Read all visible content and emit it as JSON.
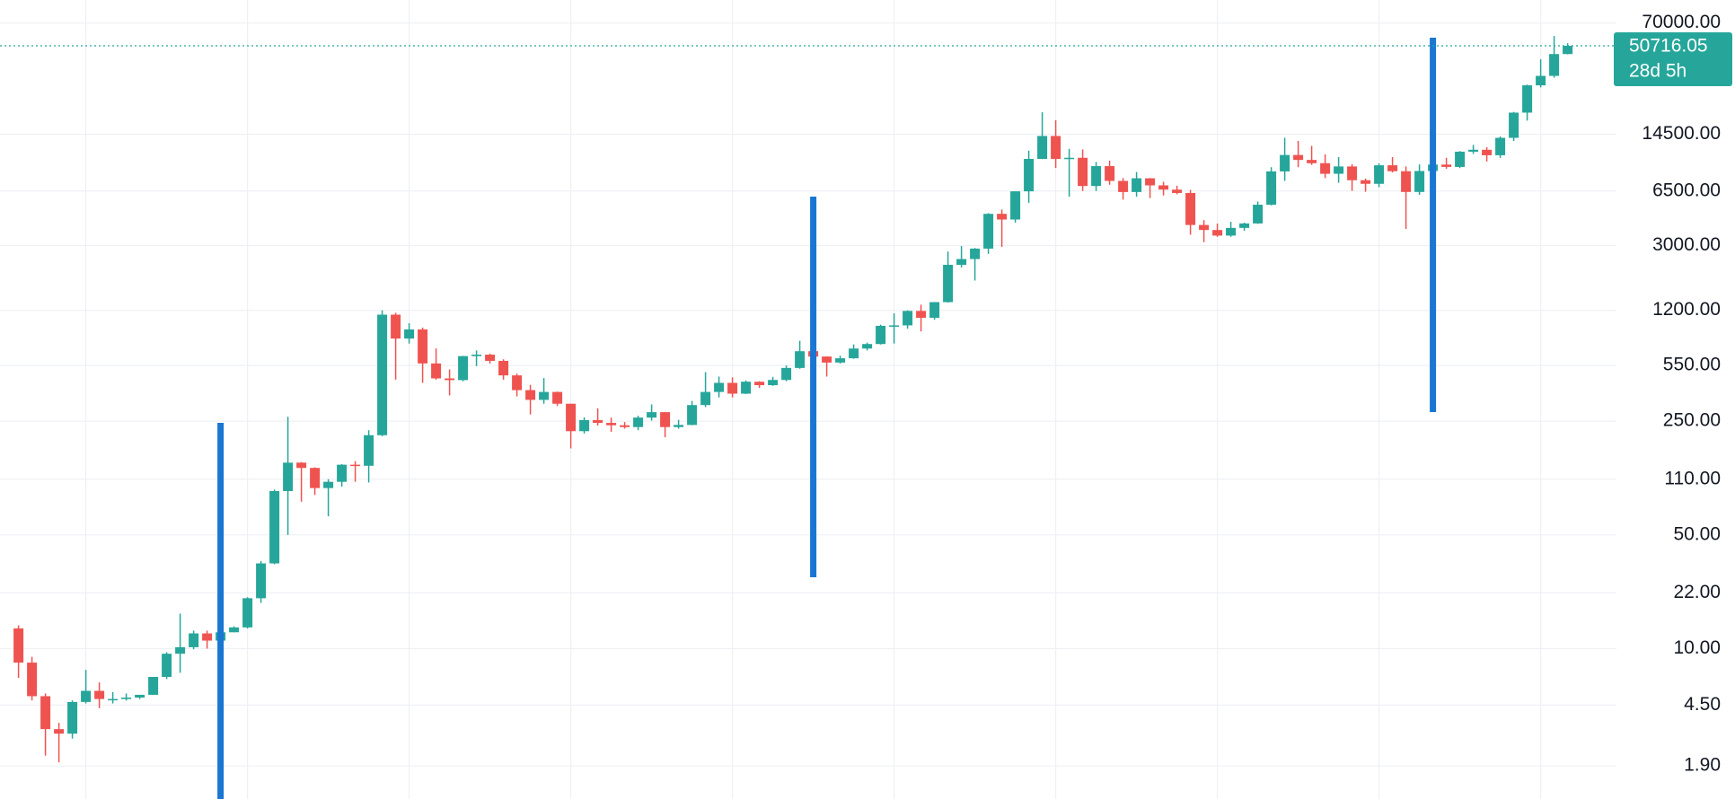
{
  "chart_data": {
    "type": "candlestick",
    "log_scale": true,
    "grid": true,
    "up_color": "#26a69a",
    "down_color": "#ef5350",
    "ylim": [
      1.19,
      97000
    ],
    "yticks": [
      {
        "value": 70000,
        "label": "70000.00"
      },
      {
        "value": 14500,
        "label": "14500.00"
      },
      {
        "value": 6500,
        "label": "6500.00"
      },
      {
        "value": 3000,
        "label": "3000.00"
      },
      {
        "value": 1200,
        "label": "1200.00"
      },
      {
        "value": 550,
        "label": "550.00"
      },
      {
        "value": 250,
        "label": "250.00"
      },
      {
        "value": 110,
        "label": "110.00"
      },
      {
        "value": 50,
        "label": "50.00"
      },
      {
        "value": 22,
        "label": "22.00"
      },
      {
        "value": 10,
        "label": "10.00"
      },
      {
        "value": 4.5,
        "label": "4.50"
      },
      {
        "value": 1.9,
        "label": "1.90"
      }
    ],
    "countdown": "28d 5h",
    "candles": [
      {
        "open": 13.3,
        "high": 13.9,
        "low": 6.6,
        "close": 8.2
      },
      {
        "open": 8.2,
        "high": 8.9,
        "low": 4.8,
        "close": 5.1
      },
      {
        "open": 5.1,
        "high": 5.3,
        "low": 2.2,
        "close": 3.2
      },
      {
        "open": 3.2,
        "high": 3.5,
        "low": 2.0,
        "close": 3.0
      },
      {
        "open": 3.0,
        "high": 4.8,
        "low": 2.8,
        "close": 4.7
      },
      {
        "open": 4.7,
        "high": 7.4,
        "low": 4.6,
        "close": 5.5
      },
      {
        "open": 5.5,
        "high": 6.2,
        "low": 4.3,
        "close": 4.9
      },
      {
        "open": 4.9,
        "high": 5.4,
        "low": 4.6,
        "close": 4.9
      },
      {
        "open": 4.9,
        "high": 5.3,
        "low": 4.8,
        "close": 5.0
      },
      {
        "open": 5.0,
        "high": 5.2,
        "low": 4.9,
        "close": 5.2
      },
      {
        "open": 5.2,
        "high": 6.7,
        "low": 5.2,
        "close": 6.7
      },
      {
        "open": 6.7,
        "high": 9.5,
        "low": 6.5,
        "close": 9.3
      },
      {
        "open": 9.3,
        "high": 16.4,
        "low": 7.1,
        "close": 10.2
      },
      {
        "open": 10.2,
        "high": 12.9,
        "low": 9.9,
        "close": 12.4
      },
      {
        "open": 12.4,
        "high": 12.9,
        "low": 10.0,
        "close": 11.2
      },
      {
        "open": 11.2,
        "high": 12.5,
        "low": 10.5,
        "close": 12.6
      },
      {
        "open": 12.6,
        "high": 13.7,
        "low": 12.6,
        "close": 13.5
      },
      {
        "open": 13.5,
        "high": 20.7,
        "low": 13.3,
        "close": 20.4
      },
      {
        "open": 20.4,
        "high": 34.5,
        "low": 19.1,
        "close": 33.4
      },
      {
        "open": 33.4,
        "high": 95,
        "low": 33,
        "close": 93
      },
      {
        "open": 93,
        "high": 266,
        "low": 50,
        "close": 139
      },
      {
        "open": 139,
        "high": 140,
        "low": 80,
        "close": 129
      },
      {
        "open": 129,
        "high": 130,
        "low": 88,
        "close": 97
      },
      {
        "open": 97,
        "high": 110,
        "low": 65,
        "close": 106
      },
      {
        "open": 106,
        "high": 136,
        "low": 99,
        "close": 135
      },
      {
        "open": 135,
        "high": 142,
        "low": 106,
        "close": 133
      },
      {
        "open": 133,
        "high": 220,
        "low": 105,
        "close": 205
      },
      {
        "open": 205,
        "high": 1200,
        "low": 202,
        "close": 1129
      },
      {
        "open": 1129,
        "high": 1160,
        "low": 450,
        "close": 805
      },
      {
        "open": 805,
        "high": 1000,
        "low": 750,
        "close": 916
      },
      {
        "open": 916,
        "high": 940,
        "low": 430,
        "close": 566
      },
      {
        "open": 566,
        "high": 700,
        "low": 450,
        "close": 458
      },
      {
        "open": 458,
        "high": 520,
        "low": 360,
        "close": 447
      },
      {
        "open": 447,
        "high": 630,
        "low": 440,
        "close": 628
      },
      {
        "open": 628,
        "high": 680,
        "low": 545,
        "close": 641
      },
      {
        "open": 641,
        "high": 650,
        "low": 565,
        "close": 587
      },
      {
        "open": 587,
        "high": 600,
        "low": 450,
        "close": 478
      },
      {
        "open": 478,
        "high": 490,
        "low": 355,
        "close": 388
      },
      {
        "open": 388,
        "high": 418,
        "low": 275,
        "close": 338
      },
      {
        "open": 338,
        "high": 460,
        "low": 320,
        "close": 378
      },
      {
        "open": 378,
        "high": 380,
        "low": 310,
        "close": 320
      },
      {
        "open": 320,
        "high": 320,
        "low": 170,
        "close": 217
      },
      {
        "open": 217,
        "high": 264,
        "low": 210,
        "close": 254
      },
      {
        "open": 254,
        "high": 300,
        "low": 235,
        "close": 244
      },
      {
        "open": 244,
        "high": 263,
        "low": 215,
        "close": 236
      },
      {
        "open": 236,
        "high": 247,
        "low": 225,
        "close": 230
      },
      {
        "open": 230,
        "high": 270,
        "low": 220,
        "close": 263
      },
      {
        "open": 263,
        "high": 317,
        "low": 252,
        "close": 284
      },
      {
        "open": 284,
        "high": 285,
        "low": 199,
        "close": 230
      },
      {
        "open": 230,
        "high": 255,
        "low": 225,
        "close": 237
      },
      {
        "open": 237,
        "high": 333,
        "low": 236,
        "close": 314
      },
      {
        "open": 314,
        "high": 500,
        "low": 305,
        "close": 378
      },
      {
        "open": 378,
        "high": 470,
        "low": 350,
        "close": 430
      },
      {
        "open": 430,
        "high": 465,
        "low": 350,
        "close": 369
      },
      {
        "open": 369,
        "high": 445,
        "low": 367,
        "close": 437
      },
      {
        "open": 437,
        "high": 440,
        "low": 400,
        "close": 416
      },
      {
        "open": 416,
        "high": 468,
        "low": 412,
        "close": 448
      },
      {
        "open": 448,
        "high": 550,
        "low": 440,
        "close": 531
      },
      {
        "open": 531,
        "high": 780,
        "low": 525,
        "close": 673
      },
      {
        "open": 673,
        "high": 680,
        "low": 582,
        "close": 624
      },
      {
        "open": 624,
        "high": 626,
        "low": 470,
        "close": 573
      },
      {
        "open": 573,
        "high": 632,
        "low": 565,
        "close": 609
      },
      {
        "open": 609,
        "high": 740,
        "low": 605,
        "close": 699
      },
      {
        "open": 699,
        "high": 760,
        "low": 680,
        "close": 745
      },
      {
        "open": 745,
        "high": 980,
        "low": 740,
        "close": 964
      },
      {
        "open": 964,
        "high": 1150,
        "low": 750,
        "close": 970
      },
      {
        "open": 970,
        "high": 1200,
        "low": 925,
        "close": 1190
      },
      {
        "open": 1190,
        "high": 1300,
        "low": 890,
        "close": 1080
      },
      {
        "open": 1080,
        "high": 1350,
        "low": 1050,
        "close": 1348
      },
      {
        "open": 1348,
        "high": 2760,
        "low": 1340,
        "close": 2286
      },
      {
        "open": 2286,
        "high": 2980,
        "low": 2200,
        "close": 2480
      },
      {
        "open": 2480,
        "high": 2900,
        "low": 1830,
        "close": 2875
      },
      {
        "open": 2875,
        "high": 4750,
        "low": 2670,
        "close": 4703
      },
      {
        "open": 4703,
        "high": 5000,
        "low": 2950,
        "close": 4339
      },
      {
        "open": 4339,
        "high": 6470,
        "low": 4150,
        "close": 6468
      },
      {
        "open": 6468,
        "high": 11500,
        "low": 5500,
        "close": 10233
      },
      {
        "open": 10233,
        "high": 19800,
        "low": 10200,
        "close": 14156
      },
      {
        "open": 14156,
        "high": 17700,
        "low": 9000,
        "close": 10221
      },
      {
        "open": 10221,
        "high": 11800,
        "low": 6000,
        "close": 10397
      },
      {
        "open": 10397,
        "high": 11700,
        "low": 6500,
        "close": 6973
      },
      {
        "open": 6973,
        "high": 9800,
        "low": 6500,
        "close": 9240
      },
      {
        "open": 9240,
        "high": 9990,
        "low": 7100,
        "close": 7494
      },
      {
        "open": 7494,
        "high": 7800,
        "low": 5750,
        "close": 6404
      },
      {
        "open": 6404,
        "high": 8500,
        "low": 6000,
        "close": 7780
      },
      {
        "open": 7780,
        "high": 7800,
        "low": 5880,
        "close": 7037
      },
      {
        "open": 7037,
        "high": 7400,
        "low": 6100,
        "close": 6625
      },
      {
        "open": 6625,
        "high": 7000,
        "low": 6200,
        "close": 6318
      },
      {
        "open": 6318,
        "high": 6600,
        "low": 3500,
        "close": 4017
      },
      {
        "open": 4017,
        "high": 4300,
        "low": 3150,
        "close": 3742
      },
      {
        "open": 3742,
        "high": 4100,
        "low": 3400,
        "close": 3457
      },
      {
        "open": 3457,
        "high": 4200,
        "low": 3400,
        "close": 3854
      },
      {
        "open": 3854,
        "high": 4150,
        "low": 3700,
        "close": 4105
      },
      {
        "open": 4105,
        "high": 5600,
        "low": 4080,
        "close": 5350
      },
      {
        "open": 5350,
        "high": 9100,
        "low": 5300,
        "close": 8574
      },
      {
        "open": 8574,
        "high": 13800,
        "low": 7500,
        "close": 10817
      },
      {
        "open": 10817,
        "high": 13200,
        "low": 9100,
        "close": 10085
      },
      {
        "open": 10085,
        "high": 12300,
        "low": 9400,
        "close": 9630
      },
      {
        "open": 9630,
        "high": 10900,
        "low": 7800,
        "close": 8293
      },
      {
        "open": 8293,
        "high": 10500,
        "low": 7300,
        "close": 9199
      },
      {
        "open": 9199,
        "high": 9500,
        "low": 6500,
        "close": 7569
      },
      {
        "open": 7569,
        "high": 7750,
        "low": 6430,
        "close": 7193
      },
      {
        "open": 7193,
        "high": 9600,
        "low": 6850,
        "close": 9350
      },
      {
        "open": 9350,
        "high": 10500,
        "low": 8450,
        "close": 8599
      },
      {
        "open": 8599,
        "high": 9200,
        "low": 3800,
        "close": 6410
      },
      {
        "open": 6410,
        "high": 9460,
        "low": 6150,
        "close": 8624
      },
      {
        "open": 8624,
        "high": 10070,
        "low": 8100,
        "close": 9446
      },
      {
        "open": 9446,
        "high": 10400,
        "low": 8900,
        "close": 9137
      },
      {
        "open": 9137,
        "high": 11440,
        "low": 8990,
        "close": 11335
      },
      {
        "open": 11335,
        "high": 12480,
        "low": 10990,
        "close": 11649
      },
      {
        "open": 11649,
        "high": 12080,
        "low": 9860,
        "close": 10777
      },
      {
        "open": 10777,
        "high": 14080,
        "low": 10370,
        "close": 13791
      },
      {
        "open": 13791,
        "high": 19900,
        "low": 13200,
        "close": 19700
      },
      {
        "open": 19700,
        "high": 29300,
        "low": 17600,
        "close": 28990
      },
      {
        "open": 28990,
        "high": 41900,
        "low": 28150,
        "close": 33140
      },
      {
        "open": 33140,
        "high": 58300,
        "low": 32300,
        "close": 45137
      },
      {
        "open": 45137,
        "high": 52600,
        "low": 44950,
        "close": 50716.05
      }
    ]
  }
}
